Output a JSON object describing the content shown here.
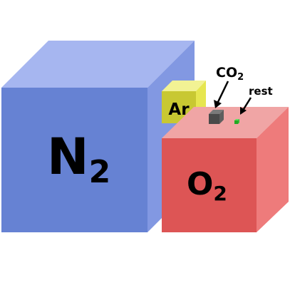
{
  "diagram": {
    "nitrogen": {
      "symbol": "N",
      "subscript": "2",
      "colors": {
        "front": "#6682d3",
        "top": "#a6b6f0",
        "side": "#8298e2"
      }
    },
    "oxygen": {
      "symbol": "O",
      "subscript": "2",
      "colors": {
        "front": "#dd5555",
        "top": "#f0a5a5",
        "side": "#ee7b7b"
      }
    },
    "argon": {
      "label": "Ar",
      "colors": {
        "front": "#c8c832",
        "top": "#f2f294",
        "side": "#e6e650"
      }
    },
    "carbon_dioxide": {
      "symbol": "CO",
      "subscript": "2",
      "colors": {
        "front": "#4a4a4a",
        "top": "#7a7a7a",
        "side": "#5e5e5e"
      }
    },
    "rest": {
      "label": "rest",
      "colors": {
        "front": "#22aa22",
        "top": "#66dd66",
        "side": "#33bb33"
      }
    }
  }
}
